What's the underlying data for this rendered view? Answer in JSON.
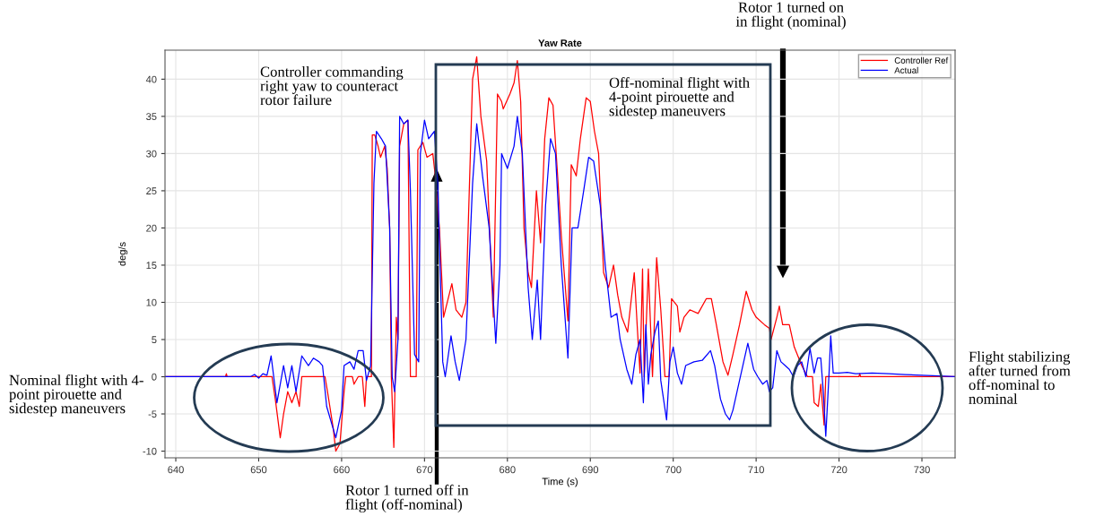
{
  "chart_data": {
    "type": "line",
    "title": "Yaw Rate",
    "xlabel": "Time (s)",
    "ylabel": "deg/s",
    "xlim": [
      638.7,
      734
    ],
    "ylim": [
      -10.9,
      43.9
    ],
    "xticks": [
      640,
      650,
      660,
      670,
      680,
      690,
      700,
      710,
      720,
      730
    ],
    "yticks": [
      -10,
      -5,
      0,
      5,
      10,
      15,
      20,
      25,
      30,
      35,
      40
    ],
    "grid": true,
    "legend": "top right",
    "line_style": "solid",
    "marker": "none",
    "series": [
      {
        "name": "Controller Ref",
        "color": "#ff0000",
        "x": [
          638.7,
          646,
          646.1,
          646.2,
          651.6,
          652,
          652.6,
          653,
          653.5,
          654,
          654.5,
          654.9,
          655.2,
          658,
          658.3,
          659,
          659.3,
          659.8,
          660.3,
          660.5,
          661.3,
          661.5,
          662,
          662.5,
          662.8,
          663,
          663.6,
          663.7,
          664.0,
          664.4,
          664.7,
          665.2,
          665.5,
          665.8,
          666.0,
          666.3,
          666.6,
          666.8,
          667.0,
          667.5,
          668.0,
          668.3,
          669.0,
          669.2,
          669.8,
          670.3,
          671,
          671.3,
          671.8,
          672.3,
          673.3,
          673.8,
          674.5,
          675,
          675.8,
          676.3,
          676.8,
          677.5,
          678.3,
          678.8,
          679.3,
          679.5,
          680.3,
          680.8,
          681.2,
          681.6,
          682.0,
          682.5,
          682.9,
          683.5,
          684.0,
          684.5,
          685.0,
          685.5,
          686.0,
          686.5,
          687.3,
          687.7,
          688.3,
          688.8,
          689.5,
          690,
          690.5,
          691,
          691.6,
          692.2,
          692.8,
          693.3,
          693.8,
          694.5,
          695.3,
          695.7,
          696,
          696.3,
          696.5,
          697,
          697.5,
          698,
          698.5,
          699,
          699.5,
          699.8,
          700.5,
          700.8,
          701.3,
          702,
          703,
          704,
          704.6,
          705.2,
          706,
          706.6,
          707.2,
          708,
          708.8,
          709.5,
          710,
          711,
          711.6,
          711.8,
          712.5,
          712.8,
          713.2,
          714,
          714.6,
          715.5,
          716.2,
          716.8,
          717,
          717.5,
          717.8,
          718.2,
          718.4,
          722.4,
          722.5,
          722.6,
          734
        ],
        "values": [
          0,
          0,
          0.4,
          0,
          0,
          -3,
          -8.2,
          -5,
          -2,
          -3.5,
          -2,
          -4,
          0,
          0,
          -2,
          -7,
          -10,
          -9,
          -2,
          0,
          0,
          -1,
          0,
          0,
          -4,
          0,
          0,
          32.5,
          32.5,
          31,
          29.5,
          31,
          28,
          20,
          0,
          -9.5,
          8,
          5,
          31,
          34,
          34.5,
          0,
          0,
          30.5,
          31.5,
          29.5,
          30,
          27,
          20,
          8,
          12.5,
          9,
          8,
          10,
          40,
          43,
          35,
          29,
          8,
          38,
          37,
          36,
          38,
          39.5,
          42.5,
          37,
          20,
          14,
          12,
          25,
          18,
          32,
          37.5,
          36.5,
          28,
          19,
          7.5,
          28.5,
          27,
          32,
          37.5,
          37,
          33,
          30,
          14,
          12,
          15,
          11,
          8,
          6,
          14,
          6,
          0.5,
          14.5,
          0,
          14.5,
          0,
          16,
          9,
          0,
          0,
          10.5,
          9.5,
          6,
          8,
          9,
          8.5,
          10.5,
          10.5,
          7,
          2,
          0.2,
          3,
          7,
          11.5,
          9,
          8,
          7,
          6.5,
          5,
          8,
          9.5,
          7,
          7,
          4,
          1.5,
          0,
          0,
          -3.5,
          -4,
          -1,
          -6.5,
          0,
          0,
          0.4,
          0,
          0
        ]
      },
      {
        "name": "Actual",
        "color": "#0000ff",
        "x": [
          638.7,
          649,
          649.5,
          650,
          650.5,
          651,
          651.5,
          652.2,
          653,
          653.5,
          654,
          654.5,
          655.2,
          656,
          656.6,
          657.3,
          657.7,
          658.2,
          659.3,
          660,
          660.3,
          661,
          661.5,
          662,
          662.6,
          663,
          663.5,
          663.9,
          664.2,
          664.8,
          665.3,
          665.8,
          666.1,
          666.4,
          666.8,
          667.0,
          667.5,
          668,
          668.3,
          668.8,
          669.3,
          669.5,
          670,
          670.5,
          671.2,
          671.6,
          672.2,
          672.5,
          673.2,
          673.7,
          674.2,
          675.0,
          675.8,
          676.3,
          677,
          677.8,
          678.6,
          679.1,
          679.3,
          680,
          680.8,
          681.2,
          681.8,
          682.5,
          683.0,
          683.6,
          684.0,
          684.6,
          685.2,
          685.8,
          686.5,
          687.3,
          687.8,
          688.5,
          689.2,
          689.8,
          690.4,
          691.2,
          691.8,
          692.5,
          693.2,
          693.6,
          694.4,
          695,
          695.5,
          696,
          696.4,
          696.7,
          697.0,
          697.3,
          697.8,
          698.2,
          698.5,
          699.2,
          699.6,
          700,
          700.5,
          701,
          701.5,
          702.5,
          703.5,
          704.5,
          705,
          705.7,
          706.3,
          706.8,
          707.2,
          707.8,
          708.5,
          709,
          709.7,
          710.2,
          710.8,
          711.3,
          711.6,
          712,
          712.5,
          713,
          713.5,
          714,
          714.5,
          715,
          715.5,
          716,
          716.5,
          717,
          717.4,
          717.8,
          718.1,
          718.4,
          718.8,
          719,
          719.3,
          720,
          721,
          722,
          724,
          726,
          728,
          730,
          732,
          734
        ],
        "values": [
          0,
          0,
          0.3,
          -0.2,
          0.4,
          0.2,
          2.8,
          -3.5,
          1.5,
          -1.5,
          1.5,
          -2,
          2.8,
          1.5,
          2.5,
          2,
          1.5,
          -4,
          -8.2,
          -4.5,
          1.5,
          2,
          1,
          3.5,
          3.5,
          -0.5,
          1.5,
          26,
          33,
          32,
          31,
          20,
          0,
          -2,
          5,
          35,
          34,
          34.5,
          25,
          3,
          2,
          30,
          34.5,
          32,
          33,
          26,
          2,
          0,
          5.5,
          2,
          -0.5,
          5,
          26,
          34,
          27,
          20,
          4.5,
          15,
          30,
          28,
          31,
          35,
          30,
          12,
          5,
          13,
          5,
          23,
          32,
          30,
          15,
          2.5,
          20,
          20,
          25,
          29.5,
          29,
          23,
          15,
          8,
          8.5,
          5,
          1,
          -1,
          3,
          5,
          -3.5,
          7,
          -1,
          3,
          6,
          7.5,
          -0.5,
          -5.8,
          2,
          4,
          0.5,
          -1,
          1.5,
          2,
          2.2,
          3.5,
          1.5,
          -3,
          -5,
          -5.8,
          -4.5,
          -1.5,
          2,
          4.5,
          1,
          0,
          -1,
          -0.5,
          -2,
          -1.5,
          3.5,
          2,
          1.5,
          1,
          0,
          1.5,
          2,
          0,
          3.8,
          0.5,
          2.5,
          2.5,
          -2,
          -8,
          0.5,
          5.5,
          0.5,
          0.5,
          0.6,
          0.4,
          0.5,
          0.4,
          0.3,
          0.2,
          0.1,
          0
        ]
      }
    ],
    "annotations": [
      "Nominal flight with 4-\npoint pirouette and\nsidestep maneuvers",
      "Controller commanding\nright yaw to counteract\nrotor failure",
      "Off-nominal flight with\n4-point pirouette and\nsidestep maneuvers",
      "Rotor 1 turned on\nin flight (nominal)",
      "Rotor 1 turned off in\nflight (off-nominal)",
      "Flight stabilizing\nafter turned from\noff-nominal to\nnominal"
    ]
  }
}
